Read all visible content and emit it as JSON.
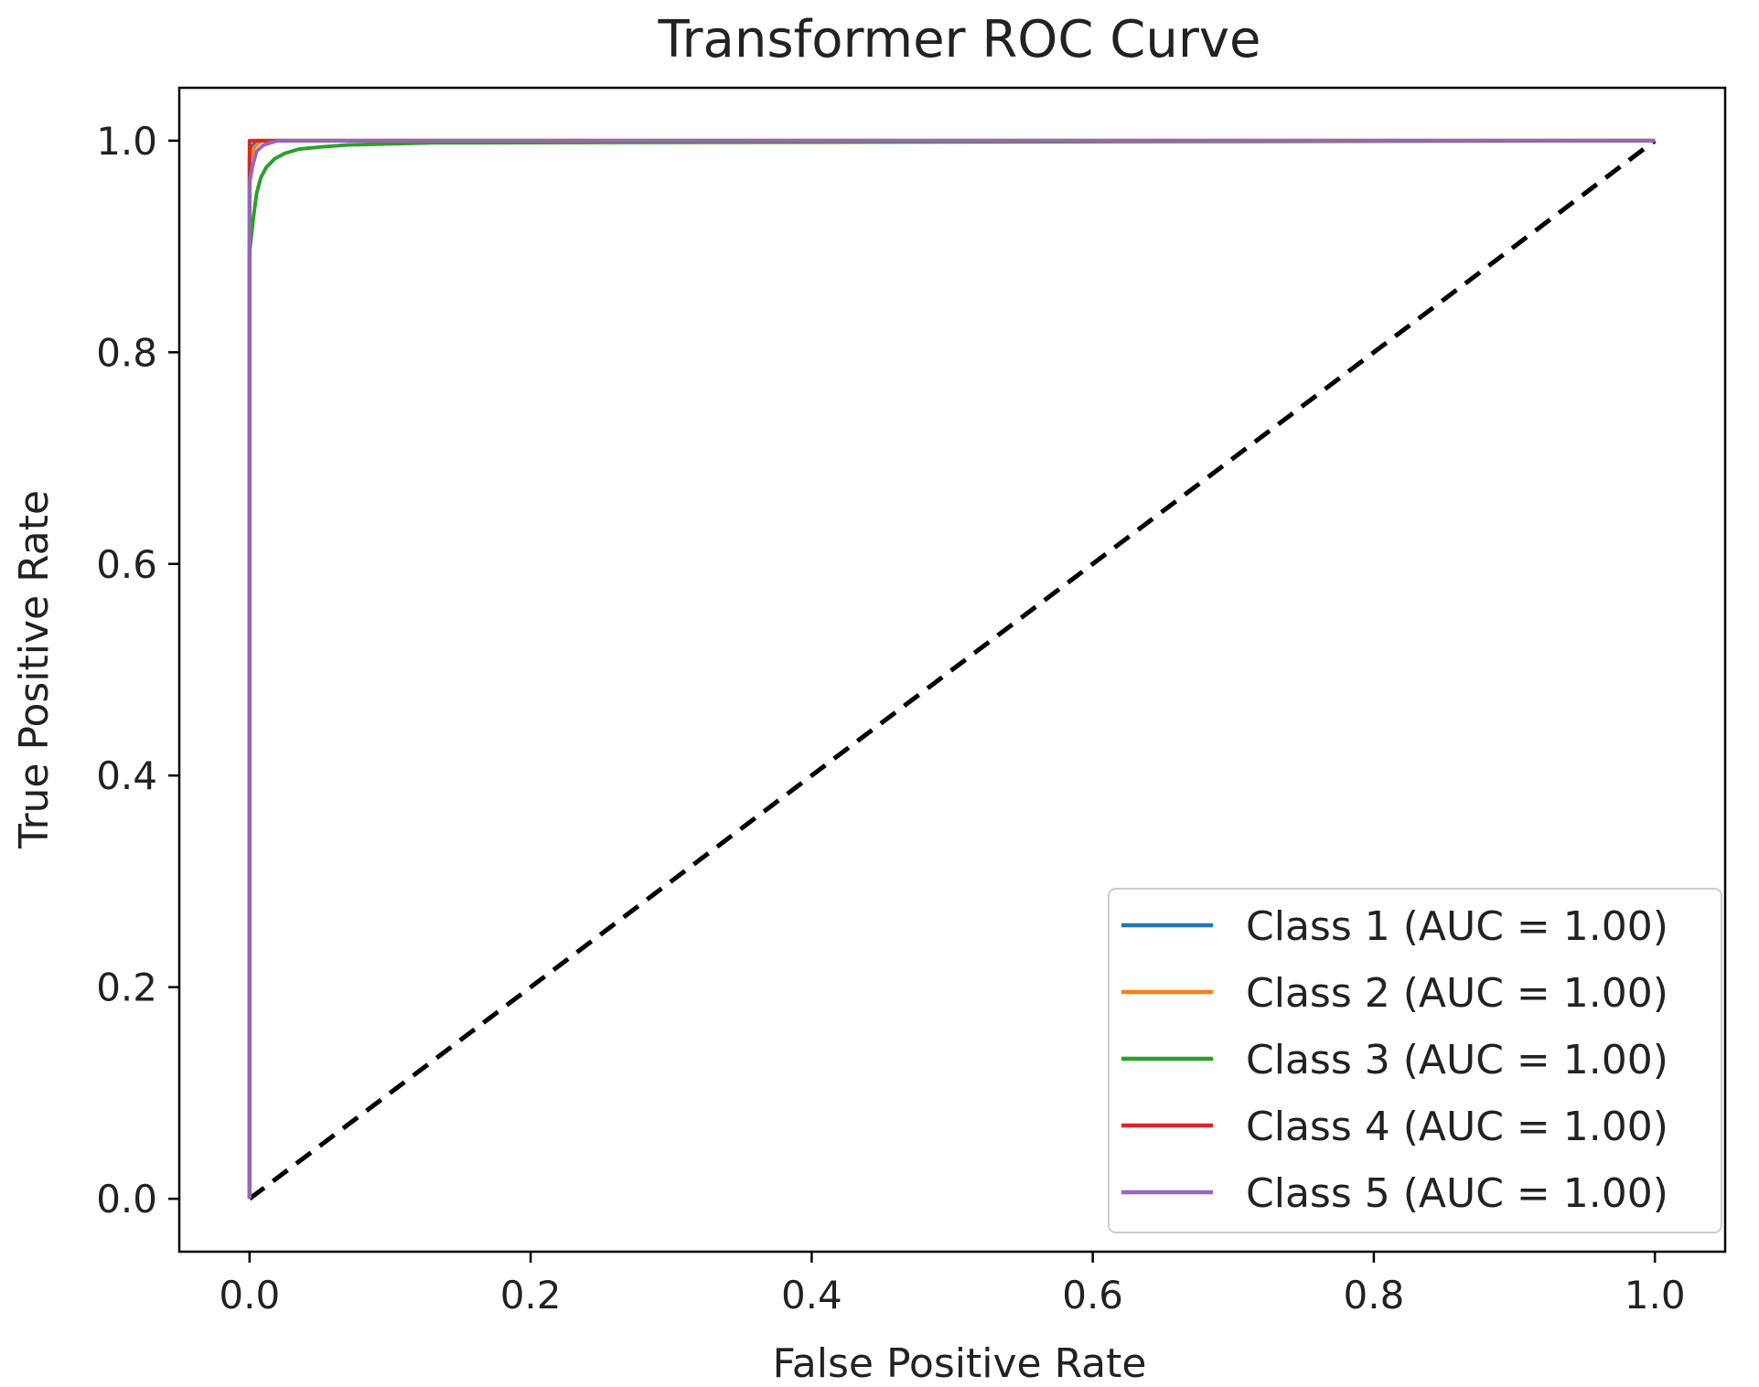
{
  "chart_data": {
    "type": "line",
    "title": "Transformer ROC Curve",
    "xlabel": "False Positive Rate",
    "ylabel": "True Positive Rate",
    "xlim": [
      -0.05,
      1.05
    ],
    "ylim": [
      -0.05,
      1.05
    ],
    "xticks": [
      "0.0",
      "0.2",
      "0.4",
      "0.6",
      "0.8",
      "1.0"
    ],
    "yticks": [
      "0.0",
      "0.2",
      "0.4",
      "0.6",
      "0.8",
      "1.0"
    ],
    "grid": false,
    "legend_position": "lower-right",
    "series": [
      {
        "name": "Class 1 (AUC = 1.00)",
        "color": "#1f77b4",
        "x": [
          0.0,
          0.0,
          0.002,
          0.005,
          1.0
        ],
        "y": [
          0.0,
          0.985,
          0.995,
          1.0,
          1.0
        ]
      },
      {
        "name": "Class 2 (AUC = 1.00)",
        "color": "#ff7f0e",
        "x": [
          0.0,
          0.0,
          0.003,
          0.008,
          1.0
        ],
        "y": [
          0.0,
          0.98,
          0.993,
          1.0,
          1.0
        ]
      },
      {
        "name": "Class 3 (AUC = 1.00)",
        "color": "#2ca02c",
        "x": [
          0.0,
          0.0,
          0.003,
          0.005,
          0.008,
          0.012,
          0.018,
          0.025,
          0.035,
          0.05,
          0.07,
          0.1,
          0.133,
          1.0
        ],
        "y": [
          0.0,
          0.895,
          0.93,
          0.95,
          0.965,
          0.975,
          0.983,
          0.988,
          0.992,
          0.994,
          0.996,
          0.997,
          0.998,
          1.0
        ]
      },
      {
        "name": "Class 4 (AUC = 1.00)",
        "color": "#d62728",
        "x": [
          0.0,
          0.0,
          0.0,
          0.002,
          0.08,
          1.0
        ],
        "y": [
          0.0,
          0.96,
          1.0,
          1.0,
          1.0,
          1.0
        ]
      },
      {
        "name": "Class 5 (AUC = 1.00)",
        "color": "#9467bd",
        "x": [
          0.0,
          0.0,
          0.002,
          0.005,
          0.01,
          0.02,
          1.0
        ],
        "y": [
          0.0,
          0.96,
          0.975,
          0.99,
          0.996,
          1.0,
          1.0
        ]
      }
    ],
    "reference_line": {
      "x": [
        0,
        1
      ],
      "y": [
        0,
        1
      ],
      "color": "#000000",
      "style": "dashed"
    }
  }
}
